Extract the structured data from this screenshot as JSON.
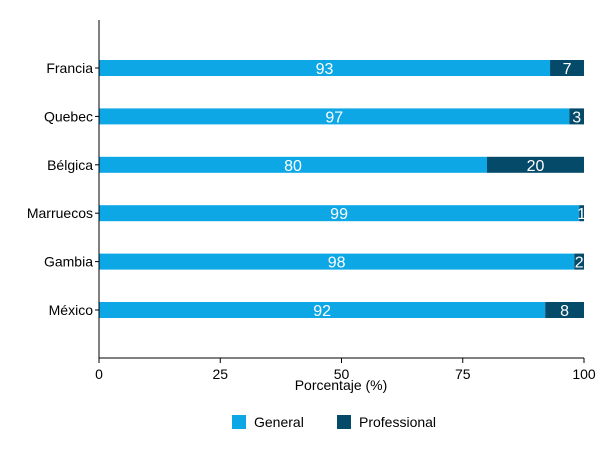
{
  "chart_data": {
    "type": "bar",
    "orientation": "horizontal",
    "stacked": true,
    "title": "",
    "xlabel": "Porcentaje (%)",
    "ylabel": "",
    "xlim": [
      0,
      100
    ],
    "xticks": [
      0,
      25,
      50,
      75,
      100
    ],
    "grid": false,
    "legend_position": "bottom",
    "categories": [
      "Francia",
      "Quebec",
      "Bélgica",
      "Marruecos",
      "Gambia",
      "México"
    ],
    "series": [
      {
        "name": "General",
        "color": "#0da7e6",
        "values": [
          93,
          97,
          80,
          99,
          98,
          92
        ]
      },
      {
        "name": "Professional",
        "color": "#064a6a",
        "values": [
          7,
          3,
          20,
          1,
          2,
          8
        ]
      }
    ]
  }
}
